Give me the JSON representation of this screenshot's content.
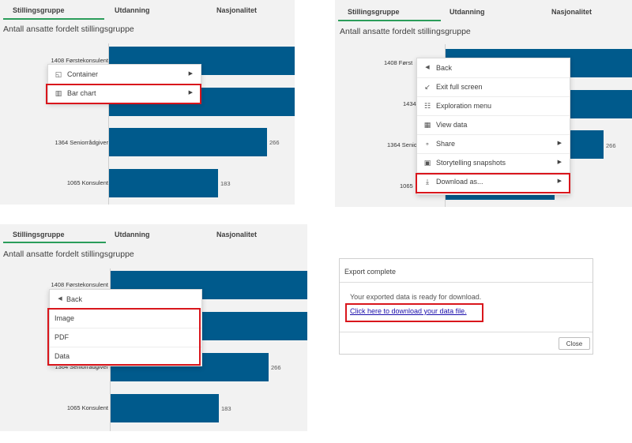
{
  "tabs": [
    "Stillingsgruppe",
    "Utdanning",
    "Nasjonalitet"
  ],
  "chart_title": "Antall ansatte fordelt stillingsgruppe",
  "chart_data": {
    "type": "bar",
    "orientation": "horizontal",
    "categories": [
      "1408 Førstekonsulent",
      "1434",
      "1364 Seniorrådgiver",
      "1065 Konsulent"
    ],
    "values_visible": [
      null,
      null,
      266,
      183
    ],
    "labels": {
      "c3": "266",
      "c4": "183"
    }
  },
  "p2_labels": {
    "c1": "1408 Først",
    "c2": "1434",
    "c3": "1364 Senio",
    "c4": "1065"
  },
  "p3_labels": {
    "c3": "1364 Seniorrådgiver"
  },
  "menu1": {
    "container": "Container",
    "bar_chart": "Bar chart"
  },
  "menu2": {
    "back": "Back",
    "exit_full_screen": "Exit full screen",
    "exploration_menu": "Exploration menu",
    "view_data": "View data",
    "share": "Share",
    "storytelling": "Storytelling snapshots",
    "download_as": "Download as..."
  },
  "menu3": {
    "back": "Back",
    "image": "Image",
    "pdf": "PDF",
    "data": "Data"
  },
  "export": {
    "title": "Export complete",
    "message": "Your exported data is ready for download.",
    "link": "Click here to download your data file.",
    "close": "Close"
  },
  "colors": {
    "bar": "#005a8c",
    "highlight": "#d9161c",
    "tab_underline": "#2b9d5a"
  }
}
